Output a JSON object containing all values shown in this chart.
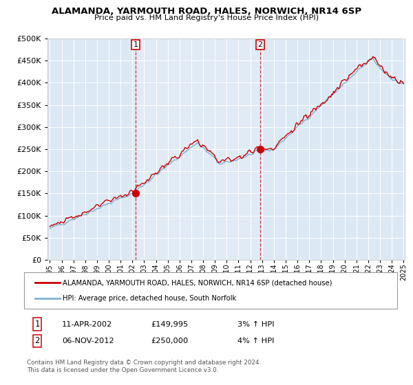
{
  "title": "ALAMANDA, YARMOUTH ROAD, HALES, NORWICH, NR14 6SP",
  "subtitle": "Price paid vs. HM Land Registry's House Price Index (HPI)",
  "legend_red": "ALAMANDA, YARMOUTH ROAD, HALES, NORWICH, NR14 6SP (detached house)",
  "legend_blue": "HPI: Average price, detached house, South Norfolk",
  "transaction1_date": "11-APR-2002",
  "transaction1_price": "£149,995",
  "transaction1_hpi": "3% ↑ HPI",
  "transaction2_date": "06-NOV-2012",
  "transaction2_price": "£250,000",
  "transaction2_hpi": "4% ↑ HPI",
  "footnote1": "Contains HM Land Registry data © Crown copyright and database right 2024.",
  "footnote2": "This data is licensed under the Open Government Licence v3.0.",
  "background_color": "#dce9f5",
  "fig_bg": "#ffffff",
  "grid_color": "#ffffff",
  "red_color": "#cc0000",
  "blue_color": "#7fb3d3",
  "ylim": [
    0,
    500000
  ],
  "yticks": [
    0,
    50000,
    100000,
    150000,
    200000,
    250000,
    300000,
    350000,
    400000,
    450000,
    500000
  ],
  "year_start": 1995,
  "year_end": 2025,
  "transaction1_year": 2002.28,
  "transaction2_year": 2012.84,
  "transaction1_price_val": 149995,
  "transaction2_price_val": 250000
}
